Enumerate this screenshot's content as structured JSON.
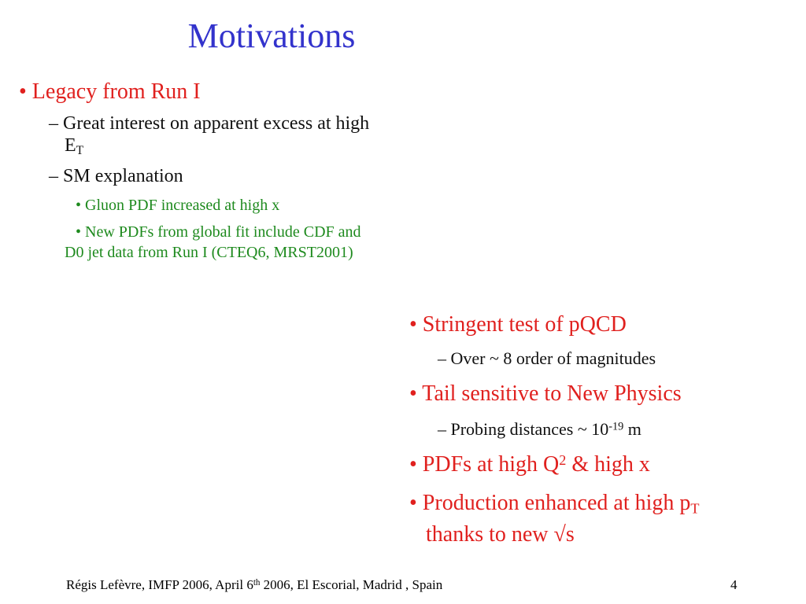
{
  "title": "Motivations",
  "left": {
    "b1": "• Legacy from Run I",
    "b1a_line1": "– Great interest on apparent excess at high",
    "b1a_line2": "E",
    "b1a_line2_sub": "T",
    "b1b": "– SM explanation",
    "b1b_i": "• Gluon PDF increased at high x",
    "b1b_ii_line1": "• New PDFs from global fit include CDF and",
    "b1b_ii_line2": "D0 jet data from Run I (CTEQ6, MRST2001)"
  },
  "right": {
    "r1": "• Stringent test of pQCD",
    "r1a": "– Over ~ 8 order of magnitudes",
    "r2": "• Tail sensitive to New Physics",
    "r2a_pre": "– Probing distances ~ 10",
    "r2a_sup": "-19",
    "r2a_post": " m",
    "r3_pre": "• PDFs at high Q",
    "r3_sup": "2",
    "r3_post": " & high x",
    "r4_line1": "• Production enhanced at high p",
    "r4_line1_sub": "T",
    "r4_line2": "thanks to new √s"
  },
  "footer": {
    "pre": "Régis Lefèvre, IMFP 2006, April 6",
    "sup": "th",
    "post": " 2006, El Escorial, Madrid , Spain",
    "page": "4"
  }
}
